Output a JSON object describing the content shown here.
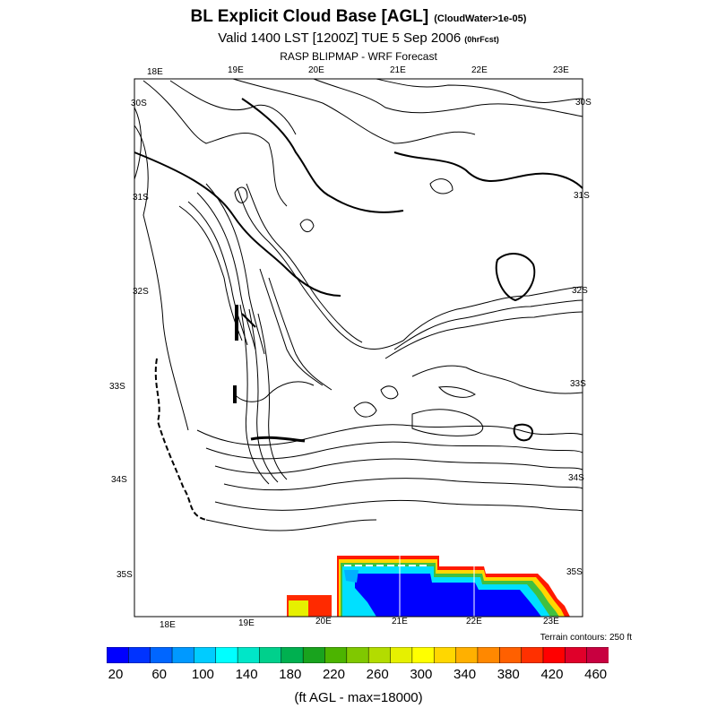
{
  "header": {
    "title": "BL Explicit Cloud Base [AGL]",
    "title_note": "(CloudWater>1e-05)",
    "subtitle": "Valid 1400 LST [1200Z] TUE 5 Sep 2006",
    "subtitle_note": "(0hrFcst)",
    "source": "RASP BLIPMAP - WRF Forecast"
  },
  "map": {
    "top_lon_labels": [
      "18E",
      "19E",
      "20E",
      "21E",
      "22E",
      "23E"
    ],
    "bottom_lon_labels": [
      "18E",
      "19E",
      "20E",
      "21E",
      "22E",
      "23E"
    ],
    "left_lat_labels": [
      "30S",
      "31S",
      "32S",
      "33S",
      "34S",
      "35S"
    ],
    "right_lat_labels": [
      "30S",
      "31S",
      "32S",
      "33S",
      "34S",
      "35S"
    ],
    "terrain_note": "Terrain contours: 250 ft",
    "contour_color": "#000000",
    "frame_color": "#000000"
  },
  "colorbar": {
    "colors": [
      "#0000ff",
      "#0033ff",
      "#0066ff",
      "#0099ff",
      "#00ccff",
      "#00ffff",
      "#00e6c8",
      "#00d08c",
      "#00b050",
      "#19a31e",
      "#4cb400",
      "#80c800",
      "#b3dc00",
      "#e6f000",
      "#ffff00",
      "#ffd700",
      "#ffb000",
      "#ff8800",
      "#ff6000",
      "#ff3000",
      "#ff0000",
      "#e0002a",
      "#c80040"
    ],
    "labels": [
      "20",
      "60",
      "100",
      "140",
      "180",
      "220",
      "260",
      "300",
      "340",
      "380",
      "420",
      "460"
    ],
    "units_label": "(ft AGL - max=18000)"
  }
}
